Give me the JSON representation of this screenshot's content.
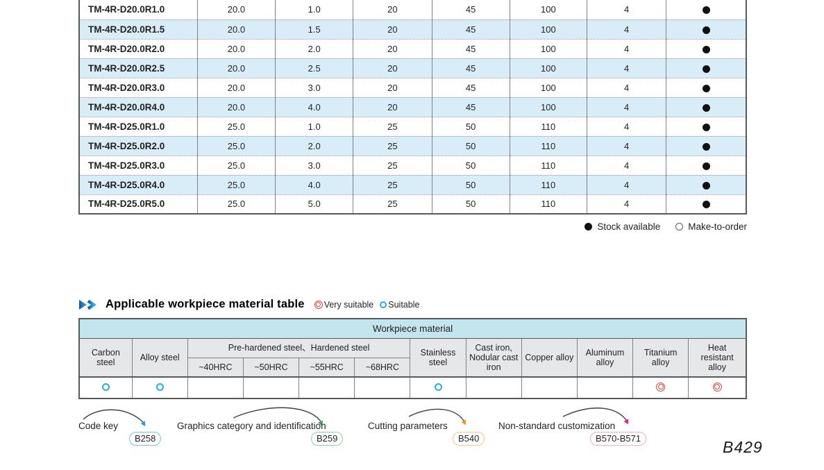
{
  "spec_table": {
    "rows": [
      {
        "model": "TM-4R-D20.0R1.0",
        "values": [
          "20.0",
          "1.0",
          "20",
          "45",
          "100",
          "4"
        ],
        "stock": "available"
      },
      {
        "model": "TM-4R-D20.0R1.5",
        "values": [
          "20.0",
          "1.5",
          "20",
          "45",
          "100",
          "4"
        ],
        "stock": "available"
      },
      {
        "model": "TM-4R-D20.0R2.0",
        "values": [
          "20.0",
          "2.0",
          "20",
          "45",
          "100",
          "4"
        ],
        "stock": "available"
      },
      {
        "model": "TM-4R-D20.0R2.5",
        "values": [
          "20.0",
          "2.5",
          "20",
          "45",
          "100",
          "4"
        ],
        "stock": "available"
      },
      {
        "model": "TM-4R-D20.0R3.0",
        "values": [
          "20.0",
          "3.0",
          "20",
          "45",
          "100",
          "4"
        ],
        "stock": "available"
      },
      {
        "model": "TM-4R-D20.0R4.0",
        "values": [
          "20.0",
          "4.0",
          "20",
          "45",
          "100",
          "4"
        ],
        "stock": "available"
      },
      {
        "model": "TM-4R-D25.0R1.0",
        "values": [
          "25.0",
          "1.0",
          "25",
          "50",
          "110",
          "4"
        ],
        "stock": "available"
      },
      {
        "model": "TM-4R-D25.0R2.0",
        "values": [
          "25.0",
          "2.0",
          "25",
          "50",
          "110",
          "4"
        ],
        "stock": "available"
      },
      {
        "model": "TM-4R-D25.0R3.0",
        "values": [
          "25.0",
          "3.0",
          "25",
          "50",
          "110",
          "4"
        ],
        "stock": "available"
      },
      {
        "model": "TM-4R-D25.0R4.0",
        "values": [
          "25.0",
          "4.0",
          "25",
          "50",
          "110",
          "4"
        ],
        "stock": "available"
      },
      {
        "model": "TM-4R-D25.0R5.0",
        "values": [
          "25.0",
          "5.0",
          "25",
          "50",
          "110",
          "4"
        ],
        "stock": "available"
      }
    ],
    "legend": {
      "stock_available": "Stock available",
      "make_to_order": "Make-to-order"
    }
  },
  "material_section": {
    "title": "Applicable workpiece material table",
    "legend": {
      "very_suitable": "Very suitable",
      "suitable": "Suitable"
    },
    "table": {
      "band": "Workpiece material",
      "group_header": "Pre-hardened steel、Hardened steel",
      "headers": {
        "carbon": "Carbon steel",
        "alloy": "Alloy steel",
        "hrc": [
          "~40HRC",
          "~50HRC",
          "~55HRC",
          "~68HRC"
        ],
        "stainless": "Stainless steel",
        "cast_iron": "Cast iron, Nodular cast iron",
        "copper": "Copper alloy",
        "aluminum": "Aluminum alloy",
        "titanium": "Titanium alloy",
        "heat": "Heat resistant alloy"
      },
      "ratings": [
        "suitable",
        "suitable",
        "",
        "",
        "",
        "",
        "suitable",
        "",
        "",
        "",
        "very_suitable",
        "very_suitable"
      ]
    }
  },
  "footnotes": [
    {
      "label": "Code key",
      "badge": "B258",
      "accent": "#2a9fd8",
      "border": "#6dc7ea"
    },
    {
      "label": "Graphics category and identification",
      "badge": "B259",
      "accent": "#39a74a",
      "border": "#8fd0a0"
    },
    {
      "label": "Cutting parameters",
      "badge": "B540",
      "accent": "#f7941d",
      "border": "#f6c489"
    },
    {
      "label": "Non-standard customization",
      "badge": "B570-B571",
      "accent": "#ec1e8c",
      "border": "#f2aacb"
    }
  ],
  "colors": {
    "row_stripe": "#d9edf8",
    "band_cyan": "#c2e5ee",
    "header_gray": "#e6e7e8",
    "suitable_blue": "#29abe2",
    "very_suitable_red": "#e8413c"
  },
  "page_number": "B429"
}
